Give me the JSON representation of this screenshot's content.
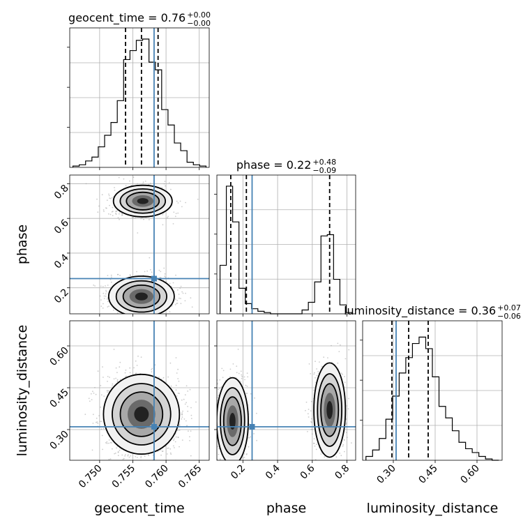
{
  "chart_data": {
    "type": "corner",
    "parameters": [
      "geocent_time",
      "phase",
      "luminosity_distance"
    ],
    "titles": {
      "geocent_time": {
        "prefix": "geocent_time = 0.76",
        "sup": "+0.00",
        "sub": "−0.00"
      },
      "phase": {
        "prefix": "phase = 0.22",
        "sup": "+0.48",
        "sub": "−0.09"
      },
      "luminosity_distance": {
        "prefix": "luminosity_distance = 0.36",
        "sup": "+0.07",
        "sub": "−0.06"
      }
    },
    "axis_labels": {
      "x": [
        "geocent_time",
        "phase",
        "luminosity_distance"
      ],
      "y": [
        "phase",
        "luminosity_distance"
      ]
    },
    "ranges": {
      "geocent_time": [
        0.7455,
        0.7665
      ],
      "phase": [
        0.05,
        0.85
      ],
      "luminosity_distance": [
        0.19,
        0.69
      ]
    },
    "ticks": {
      "geocent_time": [
        "0.750",
        "0.755",
        "0.760",
        "0.765"
      ],
      "phase": [
        "0.2",
        "0.4",
        "0.6",
        "0.8"
      ],
      "luminosity_distance": [
        "0.30",
        "0.45",
        "0.60"
      ]
    },
    "truth": {
      "geocent_time": 0.7582,
      "phase": 0.253,
      "luminosity_distance": 0.31
    },
    "quantiles": {
      "geocent_time": [
        0.7539,
        0.7563,
        0.7588
      ],
      "phase": [
        0.13,
        0.22,
        0.7
      ],
      "luminosity_distance": [
        0.295,
        0.355,
        0.425
      ]
    },
    "histograms": {
      "geocent_time": [
        0.01,
        0.02,
        0.05,
        0.08,
        0.16,
        0.25,
        0.35,
        0.52,
        0.84,
        0.91,
        0.99,
        1.0,
        0.82,
        0.76,
        0.45,
        0.33,
        0.19,
        0.13,
        0.04,
        0.02,
        0.01
      ],
      "phase": [
        0.38,
        1.0,
        0.72,
        0.2,
        0.08,
        0.04,
        0.02,
        0.01,
        0.0,
        0.0,
        0.0,
        0.0,
        0.0,
        0.03,
        0.09,
        0.25,
        0.61,
        0.62,
        0.27,
        0.07,
        0.01
      ],
      "luminosity_distance": [
        0.03,
        0.08,
        0.17,
        0.32,
        0.5,
        0.68,
        0.8,
        0.91,
        0.96,
        0.87,
        0.65,
        0.42,
        0.33,
        0.23,
        0.14,
        0.09,
        0.06,
        0.03,
        0.01,
        0.0
      ]
    },
    "modes_2d": {
      "geocent_time_vs_phase": [
        {
          "x": 0.7565,
          "y": 0.7,
          "sx": 0.0017,
          "sy": 0.035,
          "w": 0.45
        },
        {
          "x": 0.7563,
          "y": 0.15,
          "sx": 0.0019,
          "sy": 0.045,
          "w": 0.55
        }
      ],
      "geocent_time_vs_luminosity_distance": [
        {
          "x": 0.7563,
          "y": 0.355,
          "sx": 0.0022,
          "sy": 0.055,
          "w": 1.0
        }
      ],
      "phase_vs_luminosity_distance": [
        {
          "x": 0.14,
          "y": 0.33,
          "sx": 0.035,
          "sy": 0.06,
          "w": 0.55
        },
        {
          "x": 0.7,
          "y": 0.37,
          "sx": 0.035,
          "sy": 0.065,
          "w": 0.45
        }
      ]
    },
    "colors": {
      "truth": "#4682b4",
      "hist": "#000000",
      "grid": "#b0b0b0",
      "scatter": "#9a9a9a"
    }
  }
}
